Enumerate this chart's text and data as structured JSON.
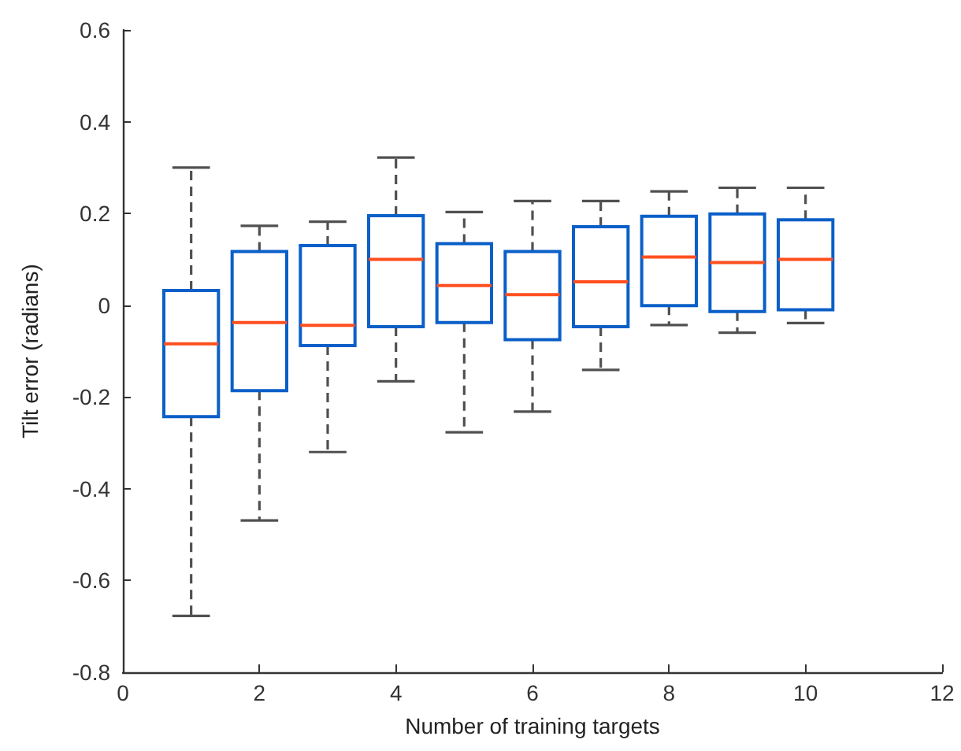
{
  "chart_data": {
    "type": "box",
    "xlabel": "Number of training targets",
    "ylabel": "Tilt error (radians)",
    "x": [
      1,
      2,
      3,
      4,
      5,
      6,
      7,
      8,
      9,
      10
    ],
    "color": "#0a5fc8",
    "boxes": [
      {
        "low": -0.677,
        "q1": -0.243,
        "median": -0.084,
        "q3": 0.032,
        "high": 0.3
      },
      {
        "low": -0.469,
        "q1": -0.186,
        "median": -0.038,
        "q3": 0.117,
        "high": 0.173
      },
      {
        "low": -0.32,
        "q1": -0.088,
        "median": -0.044,
        "q3": 0.13,
        "high": 0.182
      },
      {
        "low": -0.166,
        "q1": -0.047,
        "median": 0.1,
        "q3": 0.195,
        "high": 0.322
      },
      {
        "low": -0.277,
        "q1": -0.038,
        "median": 0.043,
        "q3": 0.134,
        "high": 0.203
      },
      {
        "low": -0.232,
        "q1": -0.075,
        "median": 0.023,
        "q3": 0.117,
        "high": 0.227
      },
      {
        "low": -0.141,
        "q1": -0.047,
        "median": 0.051,
        "q3": 0.171,
        "high": 0.227
      },
      {
        "low": -0.043,
        "q1": -0.001,
        "median": 0.105,
        "q3": 0.194,
        "high": 0.248
      },
      {
        "low": -0.06,
        "q1": -0.014,
        "median": 0.093,
        "q3": 0.199,
        "high": 0.256
      },
      {
        "low": -0.039,
        "q1": -0.01,
        "median": 0.1,
        "q3": 0.186,
        "high": 0.256
      }
    ],
    "xlim": [
      0,
      12
    ],
    "xticks": [
      0,
      2,
      4,
      6,
      8,
      10,
      12
    ],
    "ylim": [
      -0.8,
      0.6
    ],
    "yticks": [
      -0.8,
      -0.6,
      -0.4,
      -0.2,
      0,
      0.2,
      0.4,
      0.6
    ],
    "grid": false
  }
}
